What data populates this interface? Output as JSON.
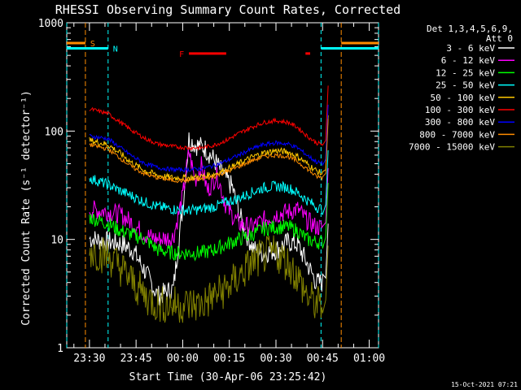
{
  "chart_data": {
    "type": "line",
    "title": "RHESSI Observing Summary Count Rates, Corrected",
    "xlabel": "Start Time (30-Apr-06 23:25:42)",
    "ylabel": "Corrected Count Rate (s⁻¹ detector⁻¹)",
    "y_scale": "log",
    "ylim": [
      1,
      1000
    ],
    "xlim_minutes_after_2330": [
      -7.3,
      93.0
    ],
    "x_ticks": [
      "23:30",
      "23:45",
      "00:00",
      "00:15",
      "00:30",
      "00:45",
      "01:00"
    ],
    "x_tick_minutes": [
      0,
      15,
      30,
      45,
      60,
      75,
      90
    ],
    "y_ticks": [
      "1",
      "10",
      "100",
      "1000"
    ],
    "y_tick_values": [
      1,
      10,
      100,
      1000
    ],
    "grid": false,
    "legend_header": [
      "Det 1,3,4,5,6,9,",
      "Att 0"
    ],
    "legend_placement": "right",
    "series": [
      {
        "name": "3 - 6 keV",
        "color": "#ffffff",
        "points": [
          [
            0,
            10.2
          ],
          [
            6,
            9.5
          ],
          [
            10,
            9.2
          ],
          [
            14,
            8
          ],
          [
            18,
            5
          ],
          [
            22,
            3
          ],
          [
            27,
            3.5
          ],
          [
            30,
            20
          ],
          [
            32,
            85
          ],
          [
            34,
            75
          ],
          [
            37,
            70
          ],
          [
            40,
            55
          ],
          [
            43,
            40
          ],
          [
            46,
            30
          ],
          [
            48,
            18
          ],
          [
            50,
            12
          ],
          [
            53,
            8
          ],
          [
            56,
            7.5
          ],
          [
            60,
            8
          ],
          [
            64,
            9.5
          ],
          [
            67,
            9
          ],
          [
            70,
            6
          ],
          [
            73,
            4
          ],
          [
            75,
            4
          ]
        ]
      },
      {
        "name": "6 - 12 keV",
        "color": "#ff00ff",
        "points": [
          [
            0,
            19
          ],
          [
            6,
            18
          ],
          [
            10,
            17
          ],
          [
            14,
            14
          ],
          [
            18,
            11
          ],
          [
            22,
            10
          ],
          [
            27,
            10.5
          ],
          [
            30,
            25
          ],
          [
            32,
            65
          ],
          [
            34,
            35
          ],
          [
            36,
            48
          ],
          [
            38,
            28
          ],
          [
            41,
            40
          ],
          [
            44,
            20
          ],
          [
            48,
            14
          ],
          [
            52,
            13
          ],
          [
            56,
            15
          ],
          [
            60,
            17
          ],
          [
            64,
            18
          ],
          [
            67,
            19
          ],
          [
            70,
            15
          ],
          [
            73,
            13
          ],
          [
            75,
            13
          ]
        ]
      },
      {
        "name": "12 - 25 keV",
        "color": "#00ff00",
        "points": [
          [
            0,
            16
          ],
          [
            6,
            14
          ],
          [
            10,
            12
          ],
          [
            14,
            11
          ],
          [
            18,
            10
          ],
          [
            22,
            8
          ],
          [
            27,
            7.5
          ],
          [
            32,
            7.5
          ],
          [
            36,
            7.5
          ],
          [
            40,
            8
          ],
          [
            44,
            9
          ],
          [
            48,
            10
          ],
          [
            52,
            11
          ],
          [
            56,
            12.5
          ],
          [
            60,
            13
          ],
          [
            64,
            13
          ],
          [
            67,
            12
          ],
          [
            70,
            10
          ],
          [
            73,
            9.5
          ],
          [
            75,
            9.5
          ]
        ]
      },
      {
        "name": "25 - 50 keV",
        "color": "#00ffff",
        "points": [
          [
            0,
            37
          ],
          [
            6,
            32
          ],
          [
            10,
            28
          ],
          [
            14,
            25
          ],
          [
            18,
            22
          ],
          [
            22,
            20
          ],
          [
            27,
            19
          ],
          [
            32,
            18.5
          ],
          [
            36,
            19
          ],
          [
            40,
            20
          ],
          [
            44,
            22
          ],
          [
            48,
            24
          ],
          [
            52,
            27
          ],
          [
            56,
            30
          ],
          [
            60,
            31
          ],
          [
            64,
            30
          ],
          [
            67,
            27
          ],
          [
            70,
            23
          ],
          [
            73,
            20
          ],
          [
            75,
            19
          ]
        ]
      },
      {
        "name": "50 - 100 keV",
        "color": "#ffc800",
        "points": [
          [
            0,
            82
          ],
          [
            6,
            75
          ],
          [
            10,
            62
          ],
          [
            14,
            50
          ],
          [
            18,
            43
          ],
          [
            22,
            39
          ],
          [
            27,
            37
          ],
          [
            32,
            37
          ],
          [
            36,
            38
          ],
          [
            40,
            40
          ],
          [
            44,
            44
          ],
          [
            48,
            50
          ],
          [
            52,
            57
          ],
          [
            56,
            63
          ],
          [
            60,
            66
          ],
          [
            64,
            64
          ],
          [
            67,
            58
          ],
          [
            70,
            50
          ],
          [
            73,
            43
          ],
          [
            75,
            40
          ]
        ]
      },
      {
        "name": "100 - 300 keV",
        "color": "#ff0000",
        "points": [
          [
            0,
            160
          ],
          [
            6,
            145
          ],
          [
            10,
            120
          ],
          [
            14,
            100
          ],
          [
            18,
            85
          ],
          [
            22,
            76
          ],
          [
            27,
            72
          ],
          [
            32,
            70
          ],
          [
            36,
            70
          ],
          [
            40,
            74
          ],
          [
            44,
            82
          ],
          [
            48,
            95
          ],
          [
            52,
            108
          ],
          [
            56,
            120
          ],
          [
            60,
            125
          ],
          [
            64,
            120
          ],
          [
            67,
            108
          ],
          [
            70,
            90
          ],
          [
            73,
            78
          ],
          [
            75,
            75
          ]
        ]
      },
      {
        "name": "300 - 800 keV",
        "color": "#0000ff",
        "points": [
          [
            0,
            90
          ],
          [
            6,
            85
          ],
          [
            10,
            70
          ],
          [
            14,
            58
          ],
          [
            18,
            50
          ],
          [
            22,
            46
          ],
          [
            27,
            44
          ],
          [
            32,
            44
          ],
          [
            36,
            45
          ],
          [
            40,
            48
          ],
          [
            44,
            53
          ],
          [
            48,
            60
          ],
          [
            52,
            68
          ],
          [
            56,
            75
          ],
          [
            60,
            78
          ],
          [
            64,
            76
          ],
          [
            67,
            70
          ],
          [
            70,
            60
          ],
          [
            73,
            52
          ],
          [
            75,
            50
          ]
        ]
      },
      {
        "name": "800 - 7000 keV",
        "color": "#ff8c00",
        "points": [
          [
            0,
            75
          ],
          [
            6,
            68
          ],
          [
            10,
            56
          ],
          [
            14,
            46
          ],
          [
            18,
            40
          ],
          [
            22,
            37
          ],
          [
            27,
            35
          ],
          [
            32,
            35
          ],
          [
            36,
            36
          ],
          [
            40,
            38
          ],
          [
            44,
            42
          ],
          [
            48,
            47
          ],
          [
            52,
            53
          ],
          [
            56,
            58
          ],
          [
            60,
            60
          ],
          [
            64,
            58
          ],
          [
            67,
            52
          ],
          [
            70,
            45
          ],
          [
            73,
            38
          ],
          [
            75,
            37
          ]
        ]
      },
      {
        "name": "7000 - 15000 keV",
        "color": "#808000",
        "points": [
          [
            0,
            8
          ],
          [
            6,
            7
          ],
          [
            10,
            5.5
          ],
          [
            14,
            4
          ],
          [
            18,
            3
          ],
          [
            22,
            2.5
          ],
          [
            27,
            2.5
          ],
          [
            32,
            2.5
          ],
          [
            36,
            2.5
          ],
          [
            40,
            3
          ],
          [
            44,
            3.5
          ],
          [
            48,
            4.5
          ],
          [
            52,
            6
          ],
          [
            56,
            7
          ],
          [
            60,
            7.5
          ],
          [
            64,
            6
          ],
          [
            67,
            4.5
          ],
          [
            70,
            3
          ],
          [
            73,
            2.5
          ],
          [
            75,
            2.5
          ]
        ]
      }
    ],
    "markers": [
      {
        "label": "S",
        "color": "#ff8c00",
        "level": 650,
        "extents": [
          [
            -7.3,
            -1.3
          ],
          [
            81,
            93
          ]
        ],
        "vlines": [
          -1.3,
          81
        ]
      },
      {
        "label": "N",
        "color": "#00ffff",
        "level": 580,
        "extents": [
          [
            -7.3,
            6
          ],
          [
            74.5,
            93
          ]
        ],
        "vlines": [
          -7.3,
          6,
          74.5,
          93
        ]
      },
      {
        "label": "F",
        "color": "#ff0000",
        "level": 520,
        "extents": [
          [
            32,
            44
          ],
          [
            69.5,
            71
          ]
        ]
      }
    ],
    "footer_date": "15-Oct-2021 07:21"
  }
}
